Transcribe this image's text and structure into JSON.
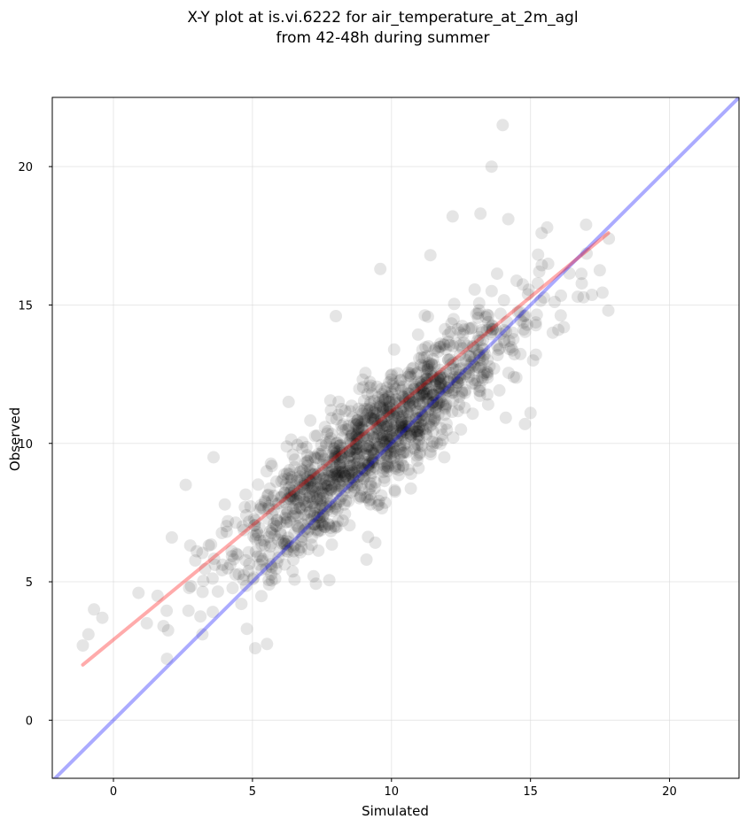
{
  "chart_data": {
    "type": "scatter",
    "title_lines": [
      "X-Y plot at is.vi.6222 for air_temperature_at_2m_agl",
      "from 42-48h during summer"
    ],
    "xlabel": "Simulated",
    "ylabel": "Observed",
    "xlim": [
      -2.2,
      22.5
    ],
    "ylim": [
      -2.1,
      22.5
    ],
    "xticks": [
      0,
      5,
      10,
      15,
      20
    ],
    "yticks": [
      0,
      5,
      10,
      15,
      20
    ],
    "grid": true,
    "point_color": "#000000",
    "point_alpha": 0.1,
    "regression_color": "#ff0000",
    "identity_color": "#0000ff",
    "regression_line": {
      "x": [
        -1.1,
        17.8
      ],
      "y": [
        2.0,
        17.6
      ]
    },
    "identity_line": {
      "x": [
        -2.2,
        22.5
      ],
      "y": [
        -2.2,
        22.5
      ]
    },
    "highlight_points": {
      "x": [
        14.0,
        13.6,
        12.2,
        13.2,
        14.2,
        17.0,
        17.8,
        15.6,
        15.4,
        9.6,
        11.4,
        8.0,
        5.1,
        4.8,
        3.2,
        1.8,
        1.2,
        0.9,
        -0.4,
        -0.7,
        -0.9,
        -1.1,
        2.6,
        16.2,
        16.7,
        15.8,
        14.8,
        4.6,
        5.6,
        7.2,
        9.1,
        10.7,
        3.6,
        2.1,
        6.3,
        11.9,
        12.5,
        14.4,
        15.0,
        16.0
      ],
      "y": [
        21.5,
        20.0,
        18.2,
        18.3,
        18.1,
        17.9,
        14.8,
        17.8,
        17.6,
        16.3,
        16.8,
        14.6,
        2.6,
        3.3,
        3.1,
        3.4,
        3.5,
        4.6,
        3.7,
        4.0,
        3.1,
        2.7,
        8.5,
        14.2,
        15.3,
        14.0,
        10.7,
        4.2,
        4.9,
        5.2,
        5.8,
        8.9,
        9.5,
        6.6,
        11.5,
        9.5,
        10.5,
        12.4,
        11.1,
        14.1
      ]
    },
    "cloud_params": {
      "n": 1350,
      "x_mean": 9.4,
      "x_sd": 2.6,
      "slope": 0.82,
      "intercept": 2.4,
      "y_sd": 1.05,
      "seed": 6222
    }
  }
}
